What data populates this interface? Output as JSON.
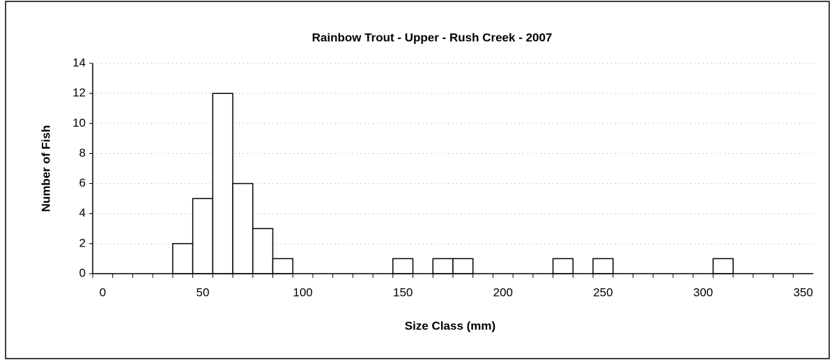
{
  "chart_data": {
    "type": "bar",
    "title": "Rainbow Trout - Upper - Rush Creek - 2007",
    "x_label": "Size Class (mm)",
    "y_label": "Number of Fish",
    "x": [
      0,
      10,
      20,
      30,
      40,
      50,
      60,
      70,
      80,
      90,
      100,
      110,
      120,
      130,
      140,
      150,
      160,
      170,
      180,
      190,
      200,
      210,
      220,
      230,
      240,
      250,
      260,
      270,
      280,
      290,
      300,
      310,
      320,
      330,
      340,
      350
    ],
    "values": [
      0,
      0,
      0,
      0,
      2,
      5,
      12,
      6,
      3,
      1,
      0,
      0,
      0,
      0,
      0,
      1,
      0,
      1,
      1,
      0,
      0,
      0,
      0,
      1,
      0,
      1,
      0,
      0,
      0,
      0,
      0,
      1,
      0,
      0,
      0,
      0
    ],
    "color": "#ffffff",
    "xlim": [
      -5,
      355
    ],
    "xticks": [
      0,
      50,
      100,
      150,
      200,
      250,
      300,
      350
    ],
    "ylim": [
      0,
      14
    ],
    "yticks": [
      0,
      2,
      4,
      6,
      8,
      10,
      12,
      14
    ],
    "grid": true
  }
}
